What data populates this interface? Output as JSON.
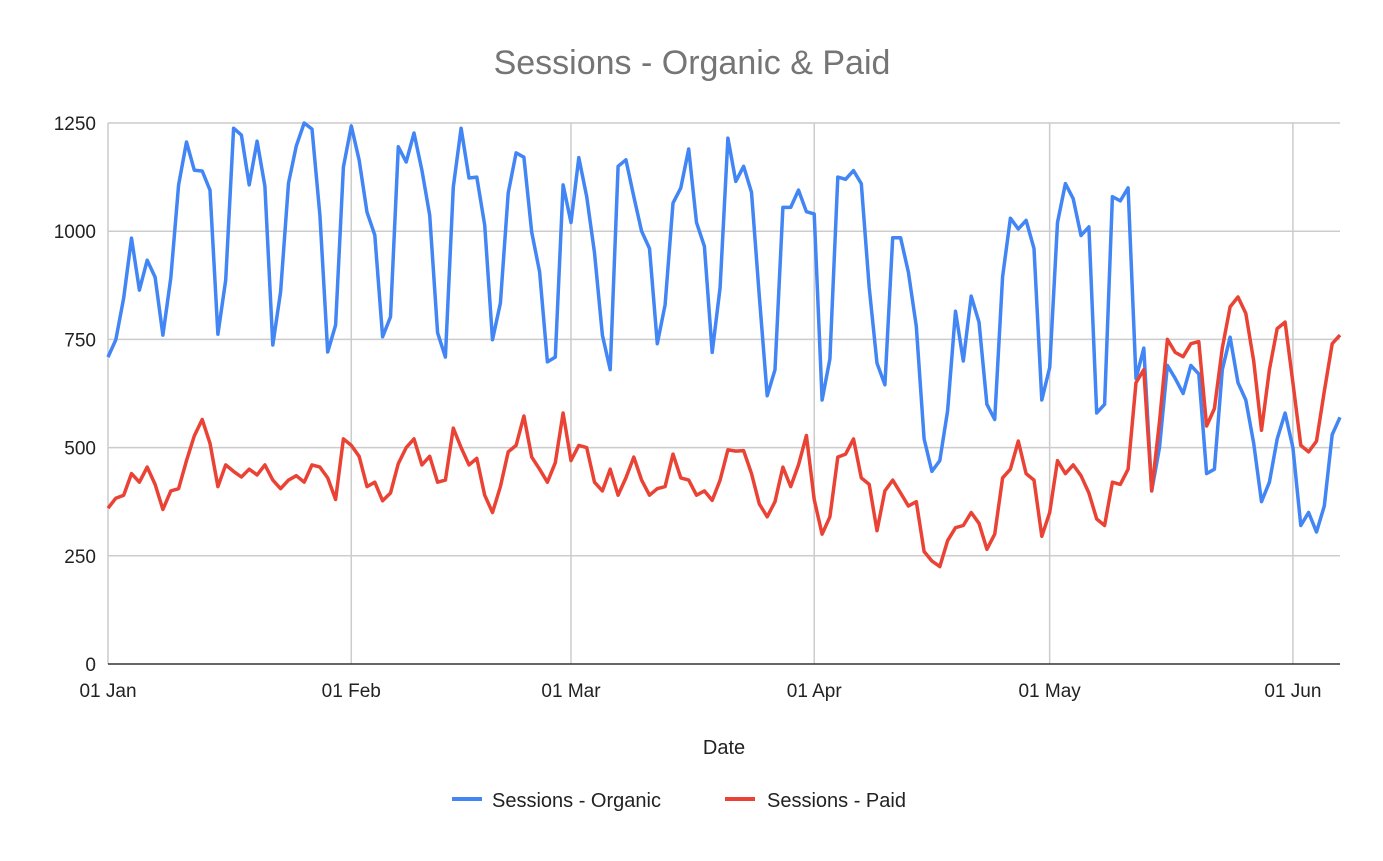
{
  "chart_data": {
    "type": "line",
    "title": "Sessions - Organic & Paid",
    "xlabel": "Date",
    "ylabel": "",
    "ylim": [
      0,
      1250
    ],
    "yticks": [
      0,
      250,
      500,
      750,
      1000,
      1250
    ],
    "grid": true,
    "legend_position": "bottom",
    "x_unit": "day index from 01 Jan",
    "xlim": [
      0,
      157
    ],
    "xticks": [
      {
        "label": "01 Jan",
        "day": 0
      },
      {
        "label": "01 Feb",
        "day": 31
      },
      {
        "label": "01 Mar",
        "day": 59
      },
      {
        "label": "01 Apr",
        "day": 90
      },
      {
        "label": "01 May",
        "day": 120
      },
      {
        "label": "01 Jun",
        "day": 151
      }
    ],
    "series": [
      {
        "name": "Sessions - Organic",
        "color": "#4285f4",
        "values": [
          709,
          749,
          846,
          984,
          864,
          933,
          894,
          760,
          892,
          1107,
          1206,
          1141,
          1139,
          1095,
          762,
          887,
          1238,
          1222,
          1107,
          1208,
          1104,
          737,
          860,
          1111,
          1197,
          1250,
          1236,
          1037,
          721,
          783,
          1148,
          1243,
          1165,
          1044,
          991,
          756,
          802,
          1195,
          1160,
          1227,
          1141,
          1037,
          765,
          709,
          1102,
          1238,
          1123,
          1125,
          1014,
          749,
          834,
          1088,
          1181,
          1171,
          998,
          906,
          698,
          709,
          1107,
          1020,
          1170,
          1080,
          950,
          760,
          680,
          1150,
          1165,
          1080,
          1000,
          960,
          740,
          830,
          1065,
          1100,
          1190,
          1020,
          965,
          720,
          870,
          1215,
          1115,
          1150,
          1090,
          850,
          620,
          680,
          1055,
          1055,
          1095,
          1045,
          1040,
          610,
          705,
          1125,
          1120,
          1140,
          1110,
          870,
          695,
          645,
          985,
          985,
          905,
          780,
          520,
          445,
          470,
          585,
          815,
          700,
          850,
          790,
          600,
          565,
          895,
          1030,
          1005,
          1025,
          960,
          610,
          685,
          1020,
          1110,
          1075,
          990,
          1010,
          580,
          600,
          1080,
          1070,
          1100,
          660,
          730,
          400,
          500,
          690,
          660,
          625,
          690,
          670,
          440,
          450,
          680,
          755,
          650,
          610,
          510,
          375,
          420,
          520,
          580,
          500,
          320,
          350,
          305,
          365,
          530,
          570
        ]
      },
      {
        "name": "Sessions - Paid",
        "color": "#ea4335",
        "values": [
          360,
          383,
          390,
          440,
          420,
          455,
          415,
          357,
          400,
          405,
          470,
          527,
          565,
          510,
          410,
          460,
          445,
          432,
          450,
          437,
          460,
          425,
          405,
          425,
          435,
          420,
          460,
          455,
          430,
          380,
          520,
          505,
          480,
          410,
          420,
          377,
          395,
          463,
          500,
          520,
          460,
          480,
          420,
          425,
          545,
          500,
          460,
          475,
          390,
          350,
          410,
          490,
          505,
          573,
          478,
          450,
          420,
          465,
          580,
          470,
          505,
          500,
          420,
          400,
          450,
          390,
          430,
          478,
          425,
          390,
          405,
          410,
          485,
          430,
          425,
          390,
          400,
          378,
          425,
          495,
          492,
          493,
          440,
          370,
          340,
          375,
          455,
          410,
          460,
          528,
          380,
          300,
          340,
          478,
          485,
          520,
          430,
          415,
          308,
          400,
          425,
          395,
          365,
          375,
          260,
          238,
          225,
          285,
          315,
          320,
          350,
          325,
          265,
          300,
          430,
          450,
          515,
          440,
          425,
          295,
          350,
          470,
          440,
          460,
          435,
          395,
          335,
          320,
          420,
          415,
          450,
          650,
          680,
          400,
          560,
          750,
          720,
          710,
          740,
          745,
          550,
          590,
          730,
          825,
          848,
          810,
          700,
          540,
          680,
          775,
          790,
          650,
          505,
          490,
          515,
          630,
          740,
          760
        ]
      }
    ]
  }
}
